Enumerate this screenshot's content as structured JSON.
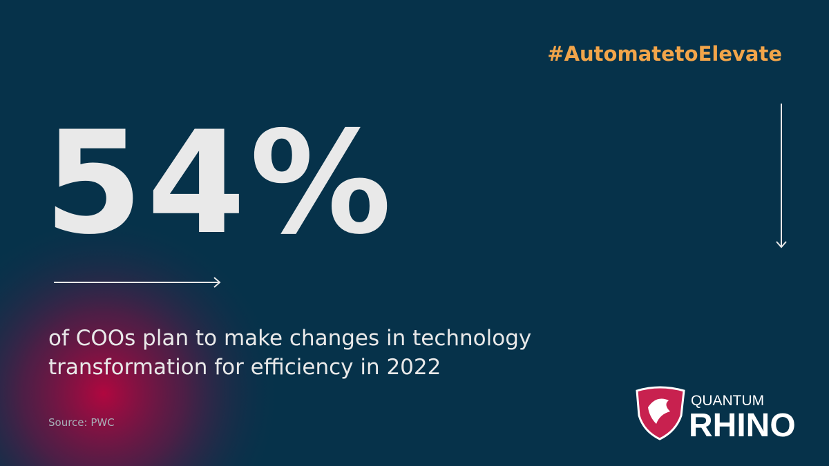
{
  "hashtag": "#AutomatetoElevate",
  "stat": "54%",
  "description": [
    "of COOs plan to make changes in technology",
    "transformation for efficiency in 2022"
  ],
  "source": "Source: PWC",
  "logo": {
    "line1": "QUANTUM",
    "line2": "RHINO"
  }
}
